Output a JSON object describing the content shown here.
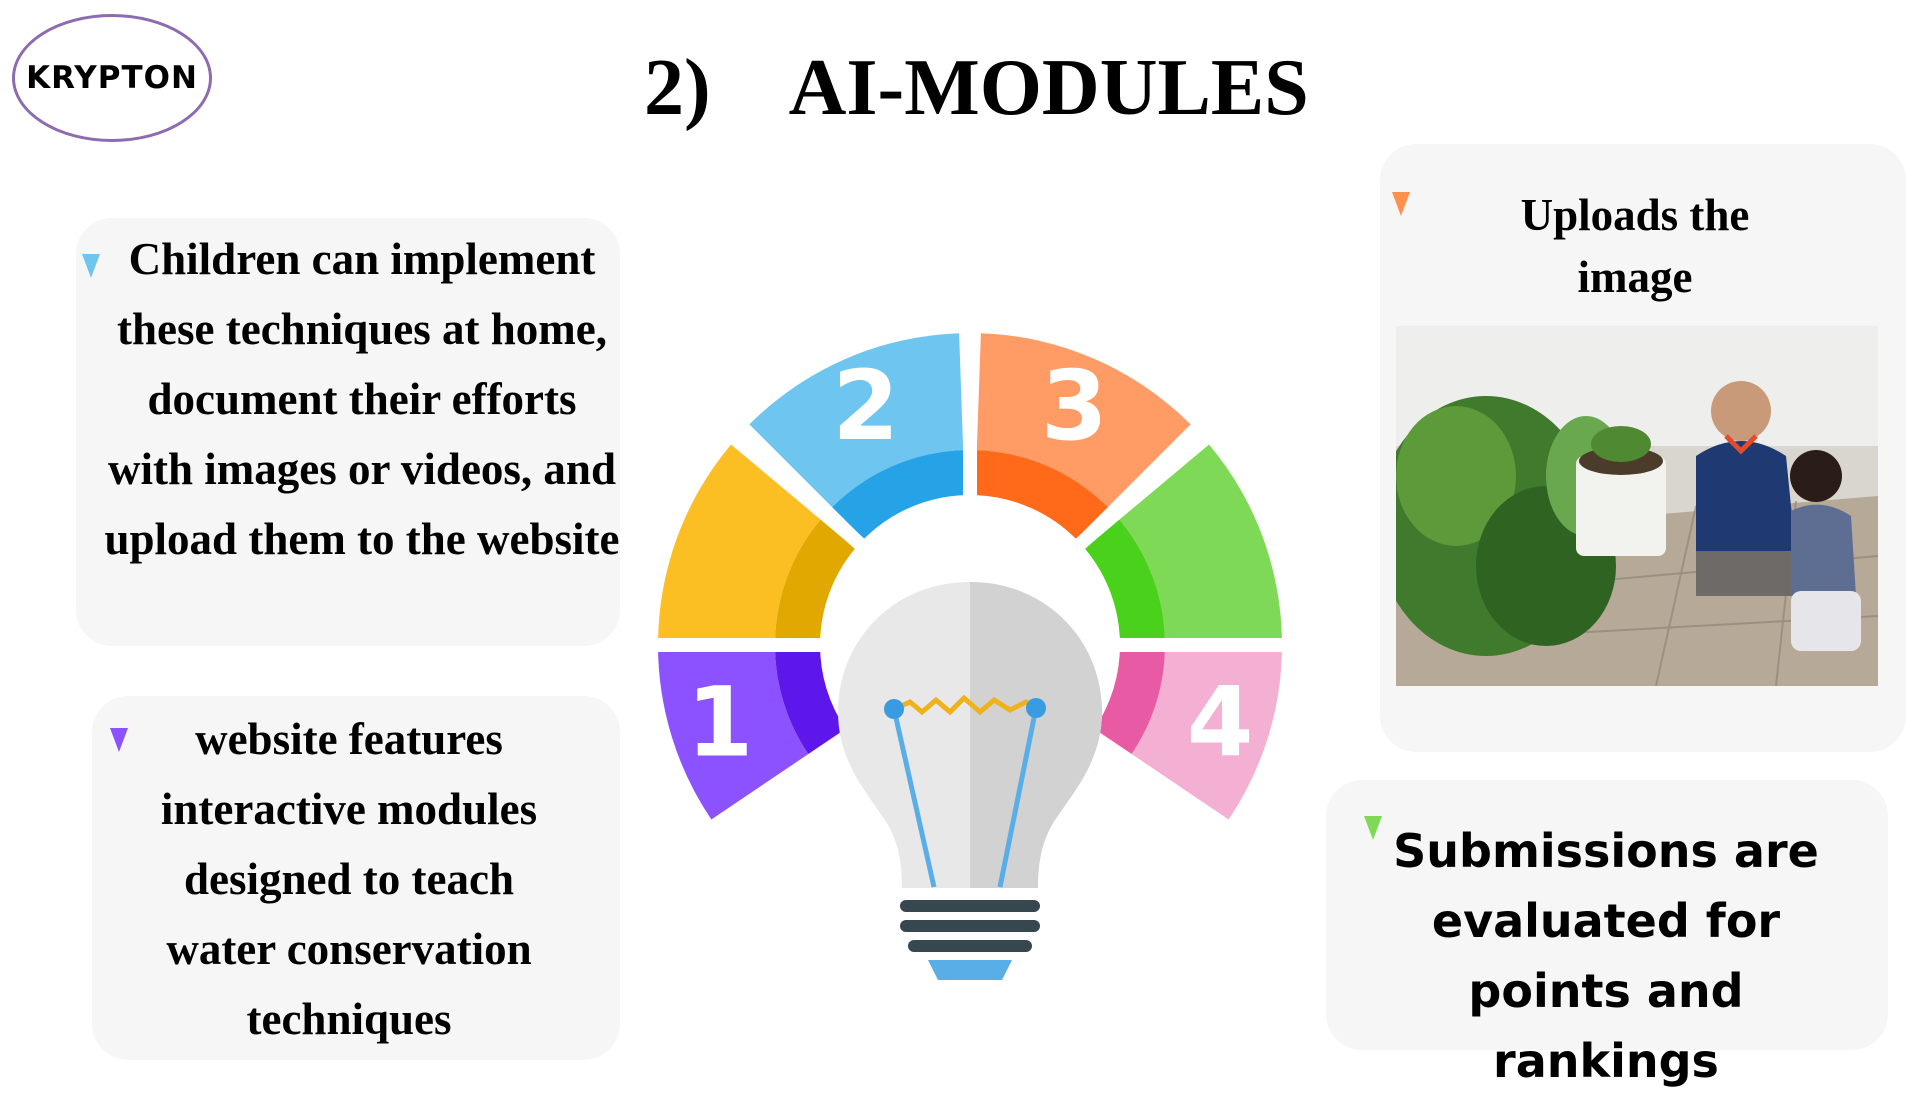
{
  "logo": {
    "text": "KRYPTON"
  },
  "header": {
    "number": "2)",
    "title": "AI-MODULES"
  },
  "cards": {
    "top_left": {
      "text": "Children can implement these techniques at home, document their efforts with images or videos, and upload them to the website",
      "marker_color": "#6ec6f0"
    },
    "bottom_left": {
      "text": "website features interactive modules designed to teach water conservation techniques",
      "marker_color": "#8c52ff"
    },
    "top_right": {
      "text": "Uploads the image",
      "marker_color": "#ff914d"
    },
    "bottom_right": {
      "text": "Submissions are evaluated for points and rankings",
      "marker_color": "#7ed957"
    }
  },
  "wheel": {
    "segments": [
      {
        "label": "1",
        "color": "#8c52ff",
        "inner_color": "#5e17eb"
      },
      {
        "label": "",
        "color": "#fbbf24",
        "inner_color": "#e0a800"
      },
      {
        "label": "2",
        "color": "#6ec6f0",
        "inner_color": "#25a3e6"
      },
      {
        "label": "3",
        "color": "#ff9c66",
        "inner_color": "#ff6a1a"
      },
      {
        "label": "",
        "color": "#7ed957",
        "inner_color": "#4ad11b"
      },
      {
        "label": "4",
        "color": "#f4b0d3",
        "inner_color": "#e85aa3"
      }
    ]
  },
  "icons": {
    "bulb": "lightbulb-icon"
  },
  "colors": {
    "card_bg": "#f6f6f6",
    "logo_border": "#8d6bb0"
  }
}
